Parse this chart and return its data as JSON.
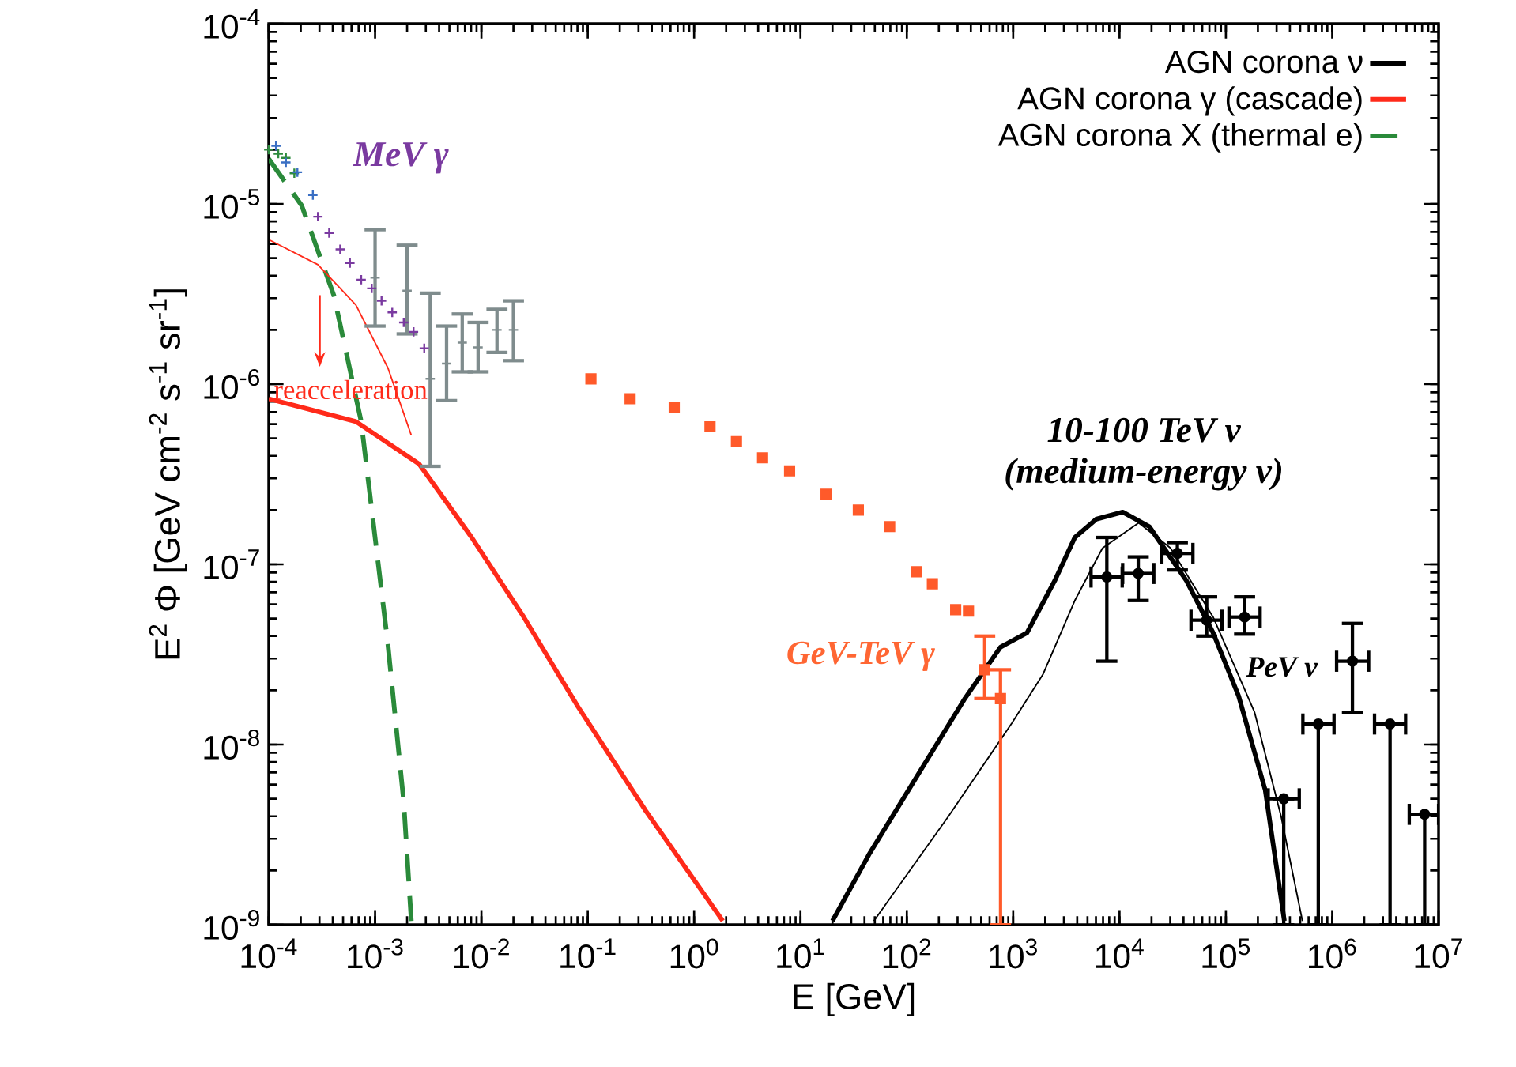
{
  "chart_data": {
    "type": "line",
    "xlabel": "E [GeV]",
    "ylabel": "E$^{2}$ Φ [GeV cm$^{-2}$ s$^{-1}$ sr$^{-1}$]",
    "log": "xy",
    "xlim": [
      0.0001,
      10000000
    ],
    "ylim": [
      1e-09,
      0.0001
    ],
    "xticks": [
      {
        "value": 0.0001,
        "label": "10$^{-4}$"
      },
      {
        "value": 0.001,
        "label": "10$^{-3}$"
      },
      {
        "value": 0.01,
        "label": "10$^{-2}$"
      },
      {
        "value": 0.1,
        "label": "10$^{-1}$"
      },
      {
        "value": 1,
        "label": "10$^{0}$"
      },
      {
        "value": 10,
        "label": "10$^{1}$"
      },
      {
        "value": 100,
        "label": "10$^{2}$"
      },
      {
        "value": 1000,
        "label": "10$^{3}$"
      },
      {
        "value": 10000,
        "label": "10$^{4}$"
      },
      {
        "value": 100000,
        "label": "10$^{5}$"
      },
      {
        "value": 1000000,
        "label": "10$^{6}$"
      },
      {
        "value": 10000000,
        "label": "10$^{7}$"
      }
    ],
    "yticks": [
      {
        "value": 1e-09,
        "label": "10$^{-9}$"
      },
      {
        "value": 1e-08,
        "label": "10$^{-8}$"
      },
      {
        "value": 1e-07,
        "label": "10$^{-7}$"
      },
      {
        "value": 1e-06,
        "label": "10$^{-6}$"
      },
      {
        "value": 1e-05,
        "label": "10$^{-5}$"
      },
      {
        "value": 0.0001,
        "label": "10$^{-4}$"
      }
    ],
    "grid": false,
    "legend": "top right",
    "annotations": [
      "MeV γ",
      "reacceleration",
      "GeV-TeV γ",
      "10-100 TeV ν",
      "(medium-energy ν)",
      "PeV ν"
    ],
    "series": [
      {
        "name": "AGN corona ν",
        "color": "#000000",
        "line_style": "solid",
        "x": [
          20,
          44,
          135,
          347,
          759,
          1349,
          2455,
          3802,
          6026,
          10715,
          19055,
          42658,
          75858,
          131826,
          234423,
          354813
        ],
        "values": [
          1.05e-09,
          2.45e-09,
          7.2e-09,
          1.78e-08,
          3.47e-08,
          4.17e-08,
          8.1e-08,
          1.41e-07,
          1.78e-07,
          1.95e-07,
          1.62e-07,
          8.1e-08,
          4.17e-08,
          1.86e-08,
          5.6e-09,
          1.05e-09
        ]
      },
      {
        "name": "AGN corona γ (cascade)",
        "color": "#ff2a1a",
        "line_style": "solid",
        "x": [
          0.0001,
          0.00066,
          0.0026,
          0.0081,
          0.025,
          0.081,
          0.35,
          1.86
        ],
        "values": [
          8.3e-07,
          6.2e-07,
          3.6e-07,
          1.41e-07,
          5.1e-08,
          1.62e-08,
          4.3e-09,
          1.05e-09
        ]
      },
      {
        "name": "AGN corona X (thermal e)",
        "color": "#2a8a3a",
        "line_style": "dashed",
        "x": [
          0.0001,
          0.000204,
          0.00041,
          0.00074,
          0.00132,
          0.00186,
          0.00219
        ],
        "values": [
          1.78e-05,
          9.8e-06,
          3.1e-06,
          6.2e-07,
          3.6e-08,
          4.8e-09,
          1.05e-09
        ]
      },
      {
        "type": "line",
        "color": "#000000",
        "line_style": "solid",
        "x": [
          49,
          245,
          977,
          1905,
          3802,
          6918,
          15136,
          30200,
          75858,
          186209,
          331131,
          524807
        ],
        "values": [
          1.05e-09,
          3.98e-09,
          1.32e-08,
          2.45e-08,
          6.3e-08,
          1.23e-07,
          1.7e-07,
          1.23e-07,
          5.1e-08,
          1.51e-08,
          3.98e-09,
          1.05e-09
        ]
      },
      {
        "type": "line",
        "color": "#ff2a1a",
        "line_style": "solid",
        "x": [
          0.000102,
          0.00029,
          0.00066,
          0.00132,
          0.00219
        ],
        "values": [
          6.3e-06,
          4.6e-06,
          2.75e-06,
          1.23e-06,
          5.2e-07
        ]
      },
      {
        "type": "scatter",
        "marker": "cross",
        "color": "#2e8b3e",
        "x": [
          0.0001,
          0.000123,
          0.000145,
          0.000174
        ],
        "values": [
          2e-05,
          1.9e-05,
          1.8e-05,
          1.48e-05
        ]
      },
      {
        "type": "scatter",
        "marker": "cross",
        "color": "#3a6fc4",
        "x": [
          0.000117,
          0.000145,
          0.000186,
          0.00026
        ],
        "values": [
          2.1e-05,
          1.7e-05,
          1.5e-05,
          1.12e-05
        ]
      },
      {
        "type": "scatter",
        "marker": "cross",
        "color": "#7a3aa0",
        "x": [
          0.00029,
          0.00037,
          0.00047,
          0.00058,
          0.00074,
          0.00093,
          0.00115,
          0.00145,
          0.00186,
          0.0023,
          0.0029
        ],
        "values": [
          8.5e-06,
          6.9e-06,
          5.6e-06,
          4.7e-06,
          3.8e-06,
          3.4e-06,
          2.9e-06,
          2.5e-06,
          2.2e-06,
          1.95e-06,
          1.58e-06
        ]
      },
      {
        "type": "scatter",
        "marker": "cross",
        "color": "#7f8c8d",
        "x": [
          0.001,
          0.002,
          0.0033,
          0.0047,
          0.0066,
          0.0093,
          0.014,
          0.02
        ],
        "values": [
          3.9e-06,
          3.3e-06,
          1.07e-06,
          1.3e-06,
          1.7e-06,
          1.6e-06,
          2e-06,
          2e-06
        ],
        "errors": [
          [
            2.1e-06,
            7.2e-06
          ],
          [
            1.9e-06,
            5.9e-06
          ],
          [
            3.5e-07,
            3.2e-06
          ],
          [
            8.1e-07,
            2.1e-06
          ],
          [
            1.17e-06,
            2.45e-06
          ],
          [
            1.17e-06,
            2.2e-06
          ],
          [
            1.5e-06,
            2.6e-06
          ],
          [
            1.35e-06,
            2.9e-06
          ]
        ]
      },
      {
        "type": "scatter",
        "marker": "square",
        "color": "#ff5a2a",
        "x": [
          0.107,
          0.25,
          0.65,
          1.41,
          2.5,
          4.4,
          7.9,
          17.4,
          35,
          69,
          123,
          174,
          288,
          380,
          540,
          760
        ],
        "values": [
          1.07e-06,
          8.3e-07,
          7.4e-07,
          5.8e-07,
          4.8e-07,
          3.9e-07,
          3.3e-07,
          2.45e-07,
          2e-07,
          1.62e-07,
          9.1e-08,
          7.8e-08,
          5.6e-08,
          5.5e-08,
          2.6e-08,
          1.8e-08
        ],
        "errors": [
          null,
          null,
          null,
          null,
          null,
          null,
          null,
          null,
          null,
          null,
          null,
          null,
          null,
          null,
          [
            1.8e-08,
            4e-08
          ],
          [
            1e-09,
            2.6e-08
          ]
        ]
      },
      {
        "type": "scatter",
        "marker": "circle",
        "color": "#000000",
        "x": [
          7600,
          15000,
          35000,
          66000,
          150000,
          1550000,
          350000,
          740000,
          3500000,
          7400000
        ],
        "values": [
          8.5e-08,
          8.9e-08,
          1.15e-07,
          4.9e-08,
          5.1e-08,
          2.9e-08,
          5e-09,
          1.3e-08,
          1.3e-08,
          4.1e-09
        ],
        "errors": [
          [
            2.9e-08,
            1.41e-07
          ],
          [
            6.3e-08,
            1.1e-07
          ],
          [
            9.3e-08,
            1.32e-07
          ],
          [
            4e-08,
            6.6e-08
          ],
          [
            4.1e-08,
            6.6e-08
          ],
          [
            1.5e-08,
            4.7e-08
          ],
          [
            1e-09,
            5e-09
          ],
          [
            1e-09,
            1.3e-08
          ],
          [
            1e-09,
            1.3e-08
          ],
          [
            1e-09,
            4.1e-09
          ]
        ],
        "xerrors": [
          [
            5400,
            10600
          ],
          [
            10700,
            21000
          ],
          [
            25000,
            49000
          ],
          [
            47000,
            92000
          ],
          [
            107000,
            210000
          ],
          [
            1100000,
            2200000
          ],
          [
            250000,
            490000
          ],
          [
            530000,
            1040000
          ],
          [
            2500000,
            4900000
          ],
          [
            5300000,
            10000000
          ]
        ]
      }
    ]
  }
}
